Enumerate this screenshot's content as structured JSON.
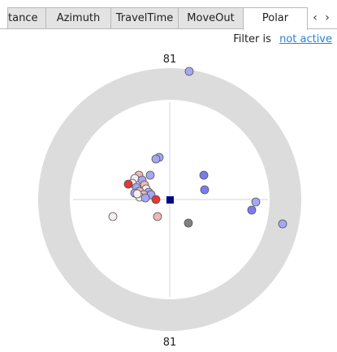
{
  "tabs": [
    {
      "label": "tance",
      "active": false
    },
    {
      "label": "Azimuth",
      "active": false
    },
    {
      "label": "TravelTime",
      "active": false
    },
    {
      "label": "MoveOut",
      "active": false
    },
    {
      "label": "Polar",
      "active": true
    }
  ],
  "scroll_left_icon": "chevron-left-icon",
  "scroll_right_icon": "chevron-right-icon",
  "scroll_left_glyph": "‹",
  "scroll_right_glyph": "›",
  "filter": {
    "label": "Filter is",
    "link": "not active"
  },
  "polar": {
    "top_label": "81",
    "bottom_label": "81",
    "colors": {
      "outer_ring": "#dcdcdc",
      "inner_disk": "#ffffff",
      "crosshair": "#d4d4d4",
      "center_marker": "#00008b",
      "blue": "#7b7bef",
      "light_blue": "#a6a6f2",
      "red": "#e83535",
      "light_red": "#f0b7b7",
      "pale": "#f4eef4",
      "gray": "#808080"
    }
  }
}
